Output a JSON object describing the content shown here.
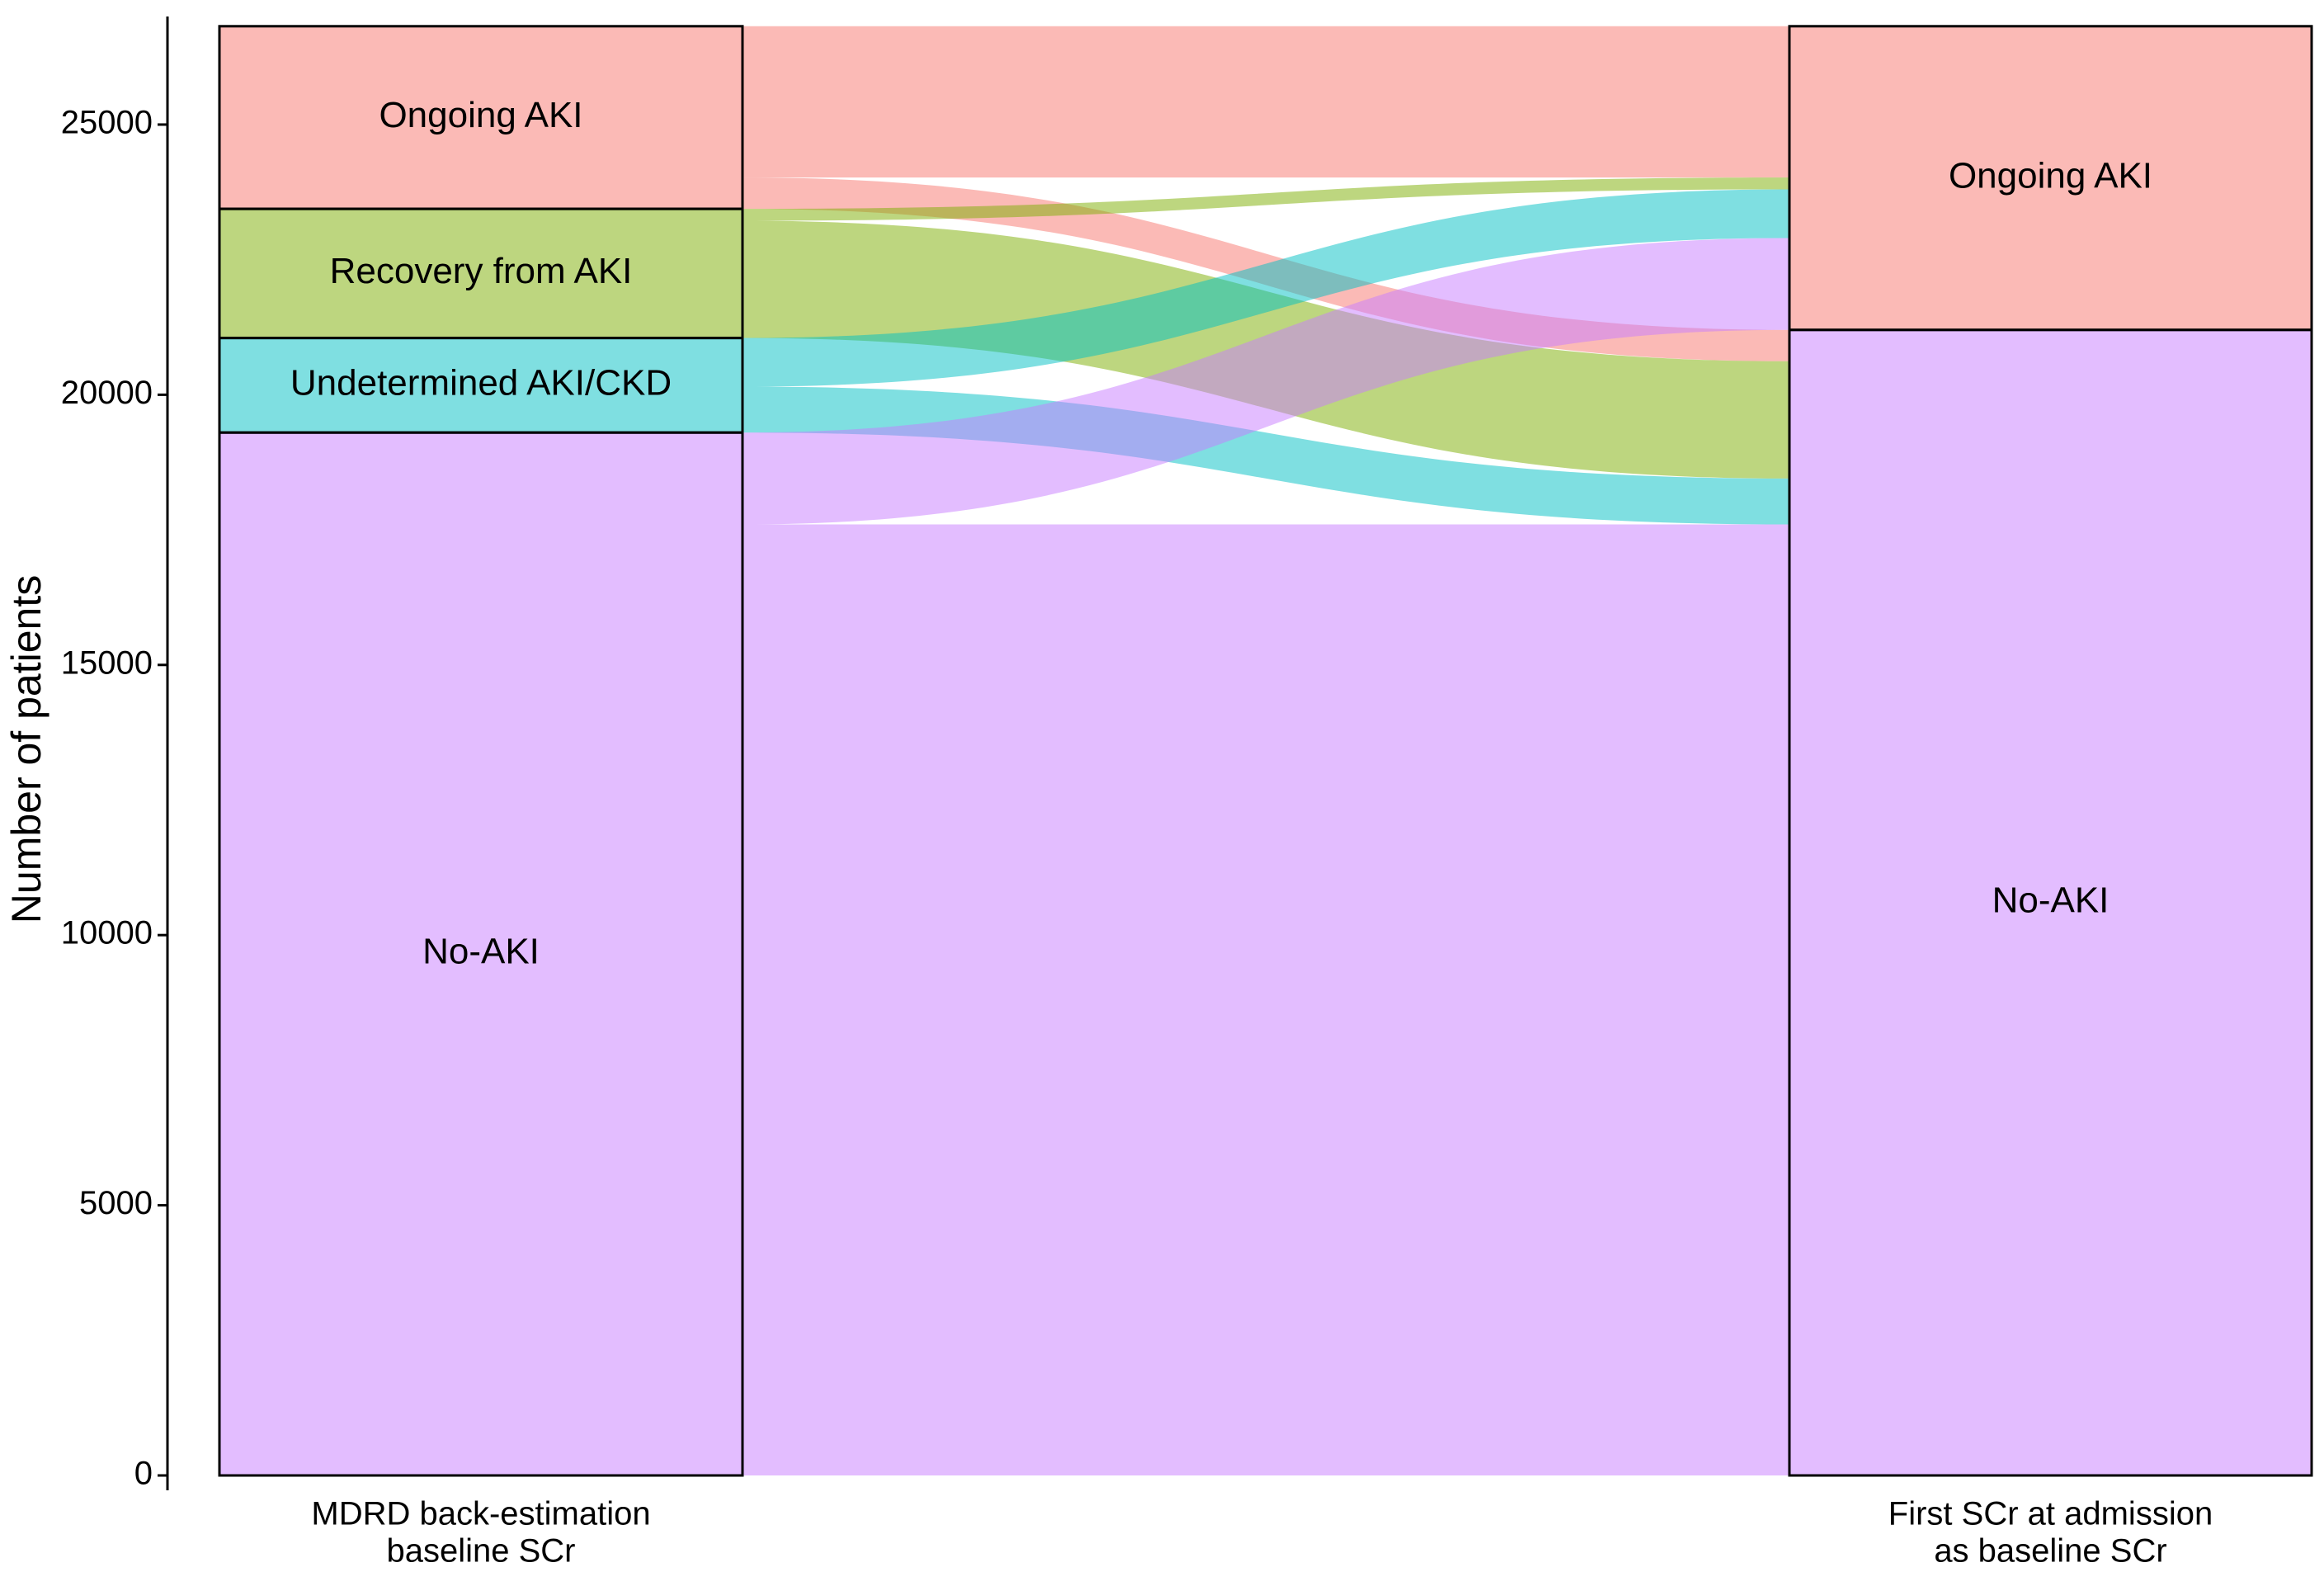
{
  "chart_data": {
    "type": "alluvial",
    "y_label": "Number of patients",
    "ylim": [
      0,
      27000
    ],
    "yticks": [
      0,
      5000,
      10000,
      15000,
      20000,
      25000
    ],
    "axes": [
      {
        "label": [
          "MDRD back-estimation",
          "baseline SCr"
        ],
        "strata": [
          "Ongoing AKI",
          "Recovery from AKI",
          "Undetermined AKI/CKD",
          "No-AKI"
        ]
      },
      {
        "label": [
          "First SCr at admission",
          "as baseline SCr"
        ],
        "strata": [
          "Ongoing AKI",
          "No-AKI"
        ]
      }
    ],
    "colors": [
      "#F8766D",
      "#7CAE00",
      "#00BFC4",
      "#C77CFF"
    ],
    "flows": [
      {
        "from": "Ongoing AKI",
        "to": "Ongoing AKI",
        "value": 2800
      },
      {
        "from": "Ongoing AKI",
        "to": "No-AKI",
        "value": 580
      },
      {
        "from": "Recovery from AKI",
        "to": "Ongoing AKI",
        "value": 220
      },
      {
        "from": "Recovery from AKI",
        "to": "No-AKI",
        "value": 2170
      },
      {
        "from": "Undetermined AKI/CKD",
        "to": "Ongoing AKI",
        "value": 900
      },
      {
        "from": "Undetermined AKI/CKD",
        "to": "No-AKI",
        "value": 850
      },
      {
        "from": "No-AKI",
        "to": "Ongoing AKI",
        "value": 1700
      },
      {
        "from": "No-AKI",
        "to": "No-AKI",
        "value": 17600
      }
    ]
  }
}
